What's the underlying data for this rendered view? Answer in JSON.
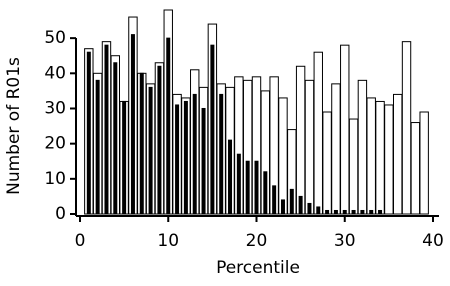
{
  "chart_data": {
    "type": "bar",
    "x_label": "Percentile",
    "y_label": "Number of R01s",
    "x": [
      1,
      2,
      3,
      4,
      5,
      6,
      7,
      8,
      9,
      10,
      11,
      12,
      13,
      14,
      15,
      16,
      17,
      18,
      19,
      20,
      21,
      22,
      23,
      24,
      25,
      26,
      27,
      28,
      29,
      30,
      31,
      32,
      33,
      34,
      35,
      36,
      37,
      38,
      39
    ],
    "series": [
      {
        "color": "#ffffff",
        "values": [
          47,
          40,
          49,
          45,
          32,
          56,
          40,
          37,
          43,
          58,
          34,
          33,
          41,
          36,
          54,
          37,
          36,
          39,
          38,
          39,
          35,
          39,
          33,
          24,
          42,
          38,
          46,
          29,
          37,
          48,
          27,
          38,
          33,
          32,
          31,
          34,
          49,
          26,
          29
        ]
      },
      {
        "color": "#000000",
        "values": [
          46,
          38,
          48,
          43,
          32,
          51,
          40,
          36,
          42,
          50,
          31,
          32,
          34,
          30,
          48,
          34,
          21,
          17,
          15,
          15,
          12,
          8,
          4,
          7,
          5,
          3,
          2,
          1,
          1,
          1,
          1,
          1,
          1,
          1,
          0,
          0,
          0,
          0,
          0
        ]
      }
    ],
    "xlim": [
      0,
      40
    ],
    "ylim": [
      0,
      58
    ],
    "xticks": [
      0,
      10,
      20,
      30,
      40
    ],
    "yticks": [
      0,
      10,
      20,
      30,
      40,
      50
    ]
  }
}
